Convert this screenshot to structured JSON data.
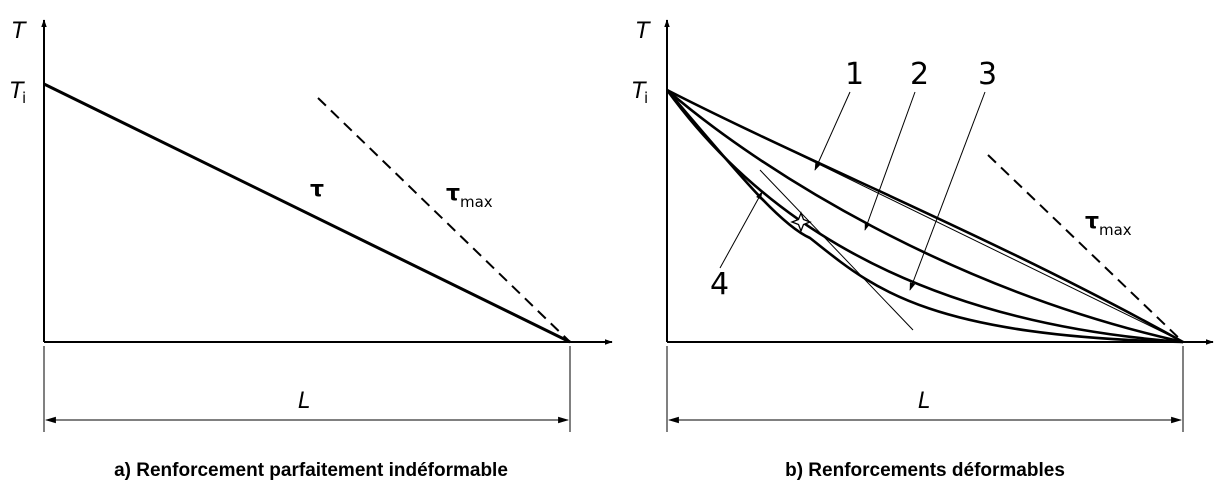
{
  "panel_a": {
    "y_axis_label": "T",
    "ti_main": "T",
    "ti_sub": "i",
    "tau_label": "τ",
    "tau_max_main": "τ",
    "tau_max_sub": "max",
    "length_label": "L",
    "caption": "a) Renforcement parfaitement indéformable"
  },
  "panel_b": {
    "y_axis_label": "T",
    "ti_main": "T",
    "ti_sub": "i",
    "tau_max_main": "τ",
    "tau_max_sub": "max",
    "length_label": "L",
    "curve_labels": [
      "1",
      "2",
      "3",
      "4"
    ],
    "caption": "b) Renforcements déformables"
  }
}
